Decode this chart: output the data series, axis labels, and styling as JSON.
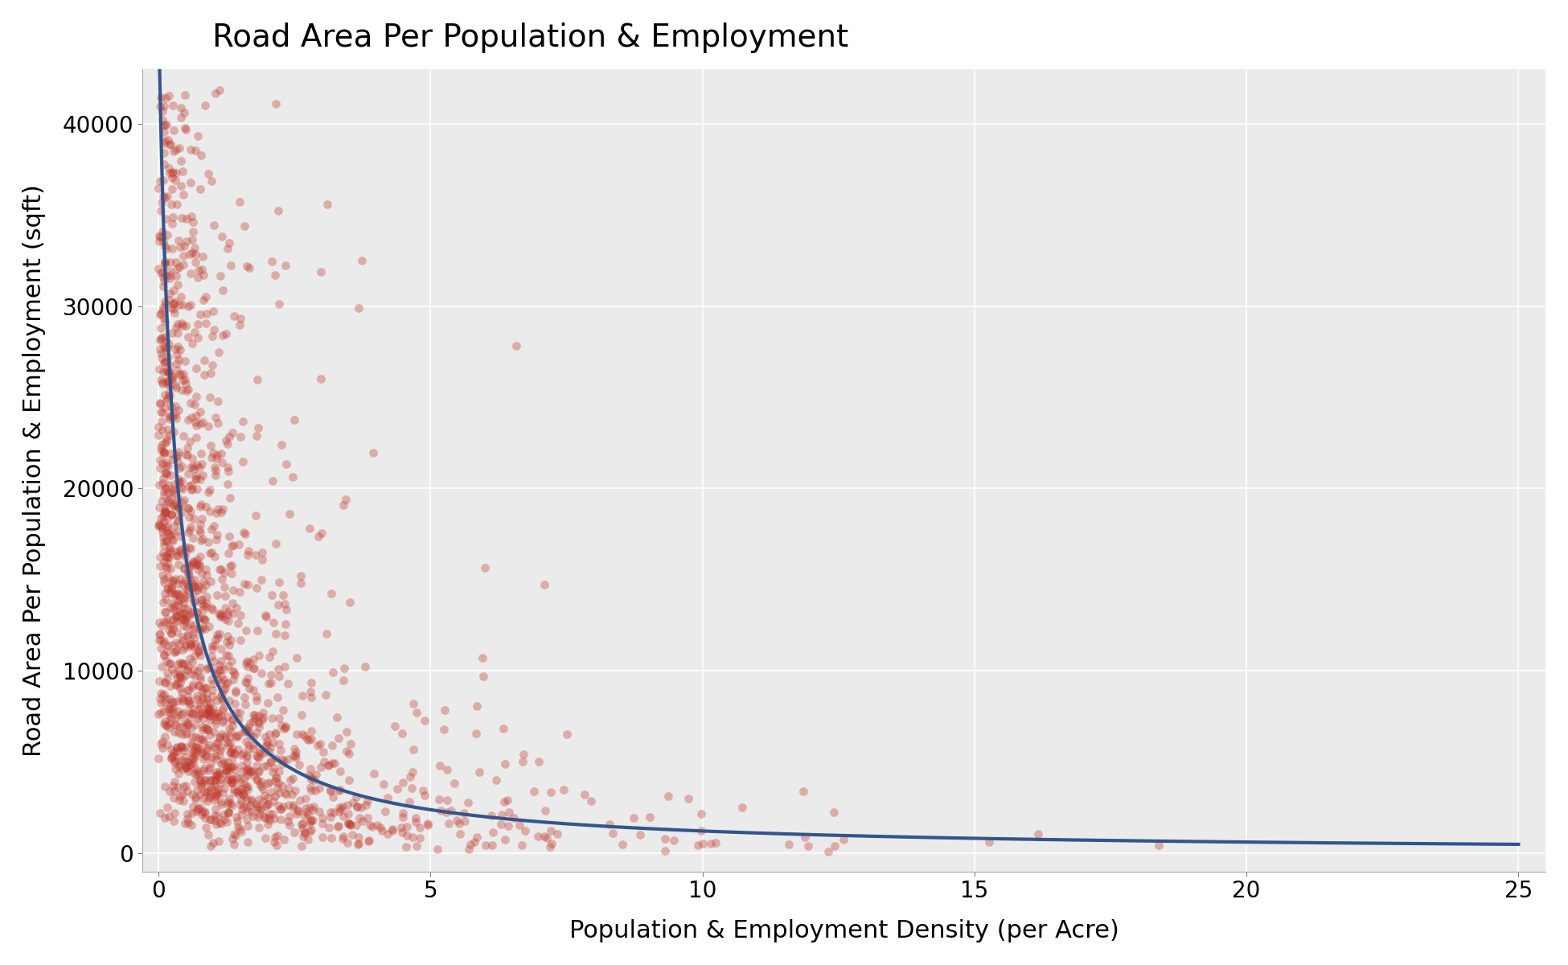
{
  "title": "Road Area Per Population & Employment",
  "xlabel": "Population & Employment Density (per Acre)",
  "ylabel": "Road Area Per Population & Employment (sqft)",
  "xlim": [
    -0.3,
    25.5
  ],
  "ylim": [
    -1000,
    43000
  ],
  "xticks": [
    0,
    5,
    10,
    15,
    20,
    25
  ],
  "yticks": [
    0,
    10000,
    20000,
    30000,
    40000
  ],
  "background_color": "#EBEBEB",
  "grid_color": "#FFFFFF",
  "scatter_color": "#C0392B",
  "scatter_alpha": 0.35,
  "scatter_size": 60,
  "curve_color": "#34558B",
  "curve_lw": 3.0,
  "title_fontsize": 28,
  "label_fontsize": 22,
  "tick_fontsize": 20,
  "seed": 42,
  "n_points": 2000
}
